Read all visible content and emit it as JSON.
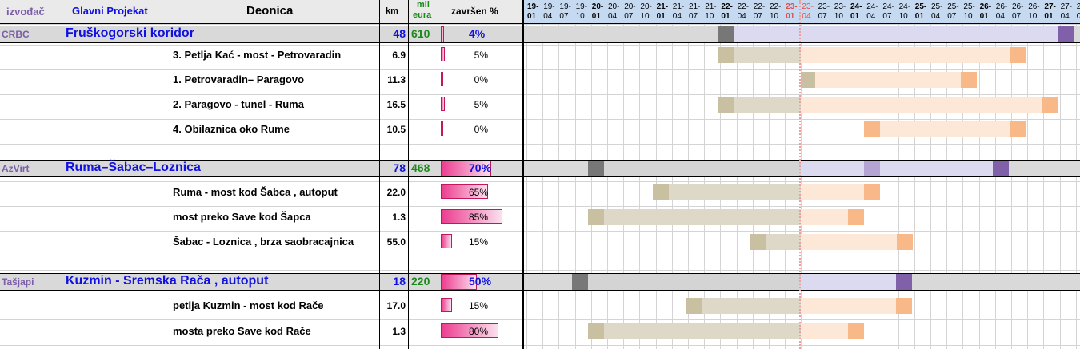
{
  "header": {
    "contractor": "izvođač",
    "project": "Glavni Projekat",
    "section": "Deonica",
    "km": "km",
    "money_line1": "mil",
    "money_line2": "eura",
    "completed": "završen %"
  },
  "timeline": {
    "years": [
      "19-",
      "19-",
      "19-",
      "19-",
      "20-",
      "20-",
      "20-",
      "20-",
      "21-",
      "21-",
      "21-",
      "21-",
      "22-",
      "22-",
      "22-",
      "22-",
      "23-",
      "23-",
      "23-",
      "23-",
      "24-",
      "24-",
      "24-",
      "24-",
      "25-",
      "25-",
      "25-",
      "25-",
      "26-",
      "26-",
      "26-",
      "26-",
      "27-",
      "27-",
      "2"
    ],
    "months": [
      "01",
      "04",
      "07",
      "10",
      "01",
      "04",
      "07",
      "10",
      "01",
      "04",
      "07",
      "10",
      "01",
      "04",
      "07",
      "10",
      "01",
      "04",
      "07",
      "10",
      "01",
      "04",
      "07",
      "10",
      "01",
      "04",
      "07",
      "10",
      "01",
      "04",
      "07",
      "10",
      "01",
      "04",
      "0"
    ],
    "current_marker_color": "#e9a0a0"
  },
  "projects": [
    {
      "contractor": "CRBC",
      "name": "Fruškogorski koridor",
      "km": "48",
      "money": "610",
      "pct": "4%",
      "progress": 0.04,
      "sections": [
        {
          "name": "3. Petlja Kać - most - Petrovaradin",
          "km": "6.9",
          "pct": "5%",
          "progress": 0.05
        },
        {
          "name": "1. Petrovaradin– Paragovo",
          "km": "11.3",
          "pct": "0%",
          "progress": 0
        },
        {
          "name": "2. Paragovo - tunel - Ruma",
          "km": "16.5",
          "pct": "5%",
          "progress": 0.05
        },
        {
          "name": "4. Obilaznica oko Rume",
          "km": "10.5",
          "pct": "0%",
          "progress": 0
        }
      ]
    },
    {
      "contractor": "AzVirt",
      "name": "Ruma–Šabac–Loznica",
      "km": "78",
      "money": "468",
      "pct": "70%",
      "progress": 0.7,
      "sections": [
        {
          "name": "Ruma - most kod Šabca , autoput",
          "km": "22.0",
          "pct": "65%",
          "progress": 0.65
        },
        {
          "name": "most preko Save kod Šapca",
          "km": "1.3",
          "pct": "85%",
          "progress": 0.85
        },
        {
          "name": "Šabac - Loznica , brza saobracajnica",
          "km": "55.0",
          "pct": "15%",
          "progress": 0.15
        }
      ]
    },
    {
      "contractor": "Tašjapi",
      "name": "Kuzmin - Sremska Rača , autoput",
      "km": "18",
      "money": "220",
      "pct": "50%",
      "progress": 0.5,
      "sections": [
        {
          "name": "petlja Kuzmin - most kod Rače",
          "km": "17.0",
          "pct": "15%",
          "progress": 0.15
        },
        {
          "name": "mosta preko Save kod Rače",
          "km": "1.3",
          "pct": "80%",
          "progress": 0.8
        }
      ]
    }
  ],
  "colors": {
    "contractor": "#7b5ea8",
    "project_name": "#1010e0",
    "money": "#1a8a1a",
    "header_blue": "#1010e0",
    "progress": "#ec3c8f",
    "gantt_dark": "#777777",
    "gantt_grey": "#d4d4d4",
    "gantt_lavender": "#dcdaf0",
    "gantt_purple": "#8060a8",
    "gantt_light_purple": "#b4a4d4",
    "gantt_tan": "#c8c0a0",
    "gantt_beige": "#ddd8c8",
    "gantt_peach_light": "#fde8d8",
    "gantt_peach": "#f8b888"
  }
}
